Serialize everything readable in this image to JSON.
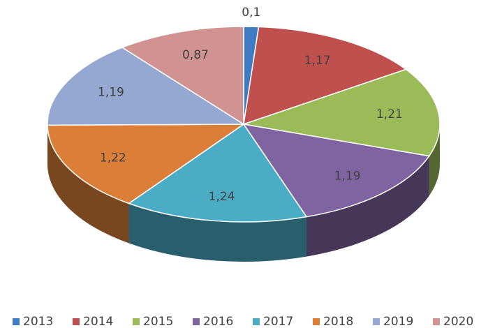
{
  "chart_data": {
    "type": "pie",
    "categories": [
      "2013",
      "2014",
      "2015",
      "2016",
      "2017",
      "2018",
      "2019",
      "2020"
    ],
    "values": [
      0.1,
      1.17,
      1.21,
      1.19,
      1.24,
      1.22,
      1.19,
      0.87
    ],
    "value_labels": [
      "0,1",
      "1,17",
      "1,21",
      "1,19",
      "1,24",
      "1,22",
      "1,19",
      "0,87"
    ],
    "colors": [
      "#3f7cc4",
      "#c0504d",
      "#9bbb59",
      "#8064a2",
      "#4bacc6",
      "#db7f38",
      "#94a8d2",
      "#d09391"
    ],
    "legend": "bottom"
  }
}
